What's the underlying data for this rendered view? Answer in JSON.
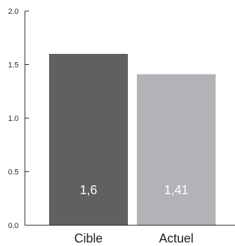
{
  "chart_data": {
    "type": "bar",
    "categories": [
      "Cible",
      "Actuel"
    ],
    "values": [
      1.6,
      1.41
    ],
    "value_labels": [
      "1,6",
      "1,41"
    ],
    "bar_colors": [
      "#5f6062",
      "#b1b3b6"
    ],
    "ylim": [
      0,
      2.0
    ],
    "yticks": [
      0.0,
      0.5,
      1.0,
      1.5,
      2.0
    ],
    "ytick_labels": [
      "0.0",
      "0.5",
      "1.0",
      "1.5",
      "2.0"
    ],
    "title": "",
    "xlabel": "",
    "ylabel": "",
    "grid": false,
    "legend": false
  },
  "colors": {
    "axis": "#231f20",
    "value_text": "#ffffff"
  }
}
